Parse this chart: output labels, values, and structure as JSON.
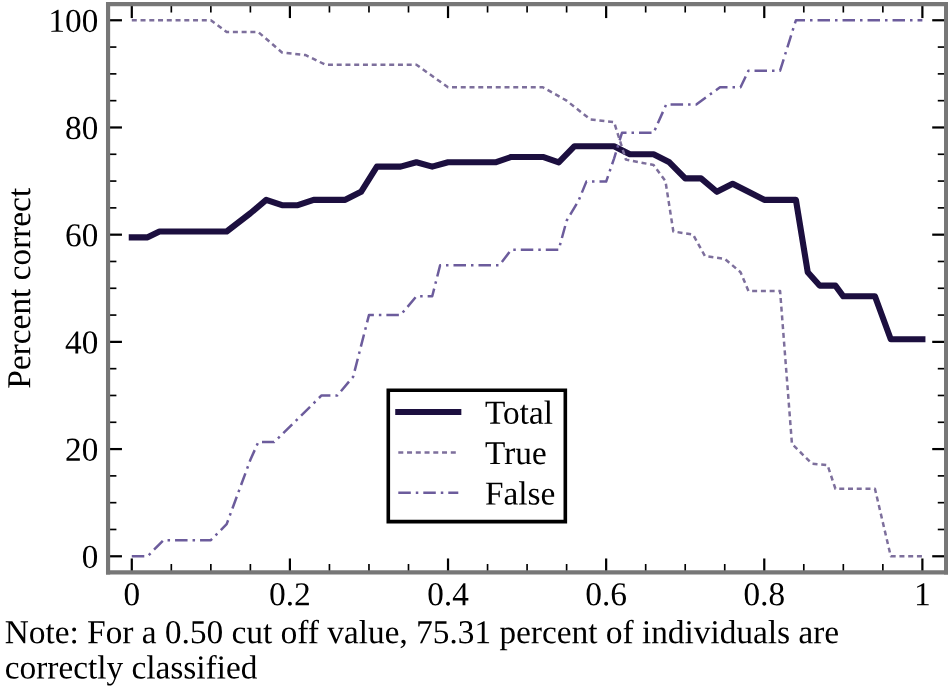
{
  "chart_data": {
    "type": "line",
    "ylabel": "Percent correct",
    "xlim": [
      -0.03,
      1.03
    ],
    "ylim": [
      -3,
      103
    ],
    "xticks": [
      0,
      0.2,
      0.4,
      0.6,
      0.8,
      1
    ],
    "yticks": [
      0,
      20,
      40,
      60,
      80,
      100
    ],
    "grid": false,
    "legend": "bottom",
    "marker": "none",
    "series": [
      {
        "name": "Total",
        "color": "#1c0f3f",
        "line_style": "solid",
        "x": [
          0,
          0.02,
          0.035,
          0.12,
          0.15,
          0.17,
          0.19,
          0.21,
          0.23,
          0.27,
          0.29,
          0.31,
          0.34,
          0.36,
          0.38,
          0.4,
          0.46,
          0.48,
          0.52,
          0.54,
          0.56,
          0.61,
          0.63,
          0.66,
          0.68,
          0.7,
          0.72,
          0.74,
          0.76,
          0.78,
          0.8,
          0.84,
          0.855,
          0.87,
          0.89,
          0.9,
          0.94,
          0.96,
          1.0
        ],
        "values": [
          59.5,
          59.5,
          60.6,
          60.6,
          64,
          66.5,
          65.5,
          65.5,
          66.5,
          66.5,
          68,
          72.7,
          72.7,
          73.5,
          72.7,
          73.5,
          73.5,
          74.5,
          74.5,
          73.5,
          76.5,
          76.5,
          75,
          75,
          73.5,
          70.5,
          70.5,
          68,
          69.5,
          68,
          66.5,
          66.5,
          53,
          50.5,
          50.5,
          48.5,
          48.5,
          40.5,
          40.5
        ]
      },
      {
        "name": "True",
        "color": "#7d6f9c",
        "line_style": "dotted",
        "x": [
          0,
          0.1,
          0.12,
          0.16,
          0.19,
          0.22,
          0.245,
          0.36,
          0.4,
          0.52,
          0.55,
          0.58,
          0.61,
          0.625,
          0.66,
          0.675,
          0.685,
          0.71,
          0.725,
          0.75,
          0.77,
          0.78,
          0.82,
          0.835,
          0.86,
          0.88,
          0.89,
          0.94,
          0.96,
          1.0
        ],
        "values": [
          100,
          100,
          97.8,
          97.8,
          94,
          93.5,
          91.7,
          91.7,
          87.5,
          87.5,
          85,
          81.5,
          81,
          74,
          73,
          70,
          60.6,
          60,
          56,
          55.5,
          53,
          49.5,
          49.5,
          21,
          17.3,
          17,
          12.6,
          12.6,
          0,
          0
        ]
      },
      {
        "name": "False",
        "color": "#6c5c9c",
        "line_style": "dashdot",
        "x": [
          0,
          0.02,
          0.04,
          0.1,
          0.12,
          0.15,
          0.16,
          0.18,
          0.24,
          0.26,
          0.28,
          0.3,
          0.34,
          0.36,
          0.38,
          0.39,
          0.465,
          0.48,
          0.54,
          0.55,
          0.565,
          0.575,
          0.6,
          0.61,
          0.62,
          0.66,
          0.676,
          0.714,
          0.744,
          0.77,
          0.78,
          0.82,
          0.84,
          1.0
        ],
        "values": [
          0,
          0,
          3,
          3,
          6,
          18,
          21.3,
          21.3,
          30,
          30,
          33.5,
          45,
          45,
          48.5,
          48.5,
          54.3,
          54.3,
          57.2,
          57.2,
          62.6,
          66.3,
          69.9,
          69.9,
          74.2,
          79,
          79,
          84.3,
          84.3,
          87.5,
          87.5,
          90.6,
          90.6,
          100,
          100
        ]
      }
    ],
    "annotations": [
      "Note: For a 0.50 cut off value, 75.31 percent of individuals are correctly classified"
    ]
  }
}
